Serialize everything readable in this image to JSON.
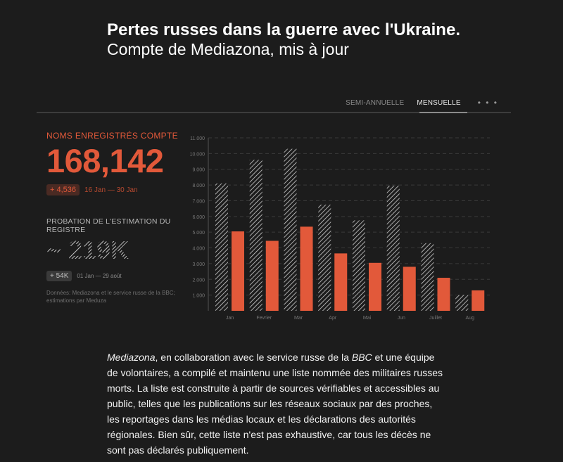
{
  "header": {
    "title": "Pertes russes dans la guerre avec l'Ukraine.",
    "subtitle": "Compte de Mediazona, mis à jour"
  },
  "tabs": [
    {
      "label": "SEMI-ANNUELLE",
      "active": false
    },
    {
      "label": "MENSUELLE",
      "active": true
    }
  ],
  "more_label": "• • •",
  "kpi_recorded": {
    "label": "NOMS ENREGISTRÉS COMPTE",
    "value": "168,142",
    "delta": "+ 4,536",
    "range": "16 Jan — 30 Jan"
  },
  "kpi_estimate": {
    "label": "PROBATION DE L'ESTIMATION DU REGISTRE",
    "value": "~ 219K",
    "delta": "+ 54K",
    "range": "01 Jan — 29 août"
  },
  "source_note": "Données: Mediazona et le service russe de la BBC; estimations par Meduza",
  "body": {
    "p1_em": "Mediazona",
    "p2": ", en collaboration avec le service russe de la ",
    "p3_em": "BBC",
    "p4": " et une équipe de volontaires, a compilé et maintenu une liste nommée des militaires russes morts. La liste est construite à partir de sources vérifiables et accessibles au public, telles que les publications sur les réseaux sociaux par des proches, les reportages dans les médias locaux et les déclarations des autorités régionales. Bien sûr, cette liste n'est pas exhaustive, car tous les décès ne sont pas déclarés publiquement."
  },
  "colors": {
    "accent": "#e2593a",
    "background": "#1c1c1c",
    "hatch": "#d0d0d0"
  },
  "chart_data": {
    "type": "bar",
    "categories": [
      "Jan",
      "Fevrier",
      "Mar",
      "Apr",
      "Mai",
      "Jun",
      "Juillet",
      "Aug"
    ],
    "series": [
      {
        "name": "",
        "style": "hatched",
        "values": [
          8100,
          9600,
          10300,
          6750,
          5750,
          7950,
          4300,
          1000
        ]
      },
      {
        "name": "",
        "style": "solid",
        "values": [
          5050,
          4450,
          5350,
          3650,
          3050,
          2800,
          2100,
          1300
        ]
      }
    ],
    "yticks": [
      1000,
      2000,
      3000,
      4000,
      5000,
      6000,
      7000,
      8000,
      9000,
      10000,
      11000
    ],
    "ytick_labels": [
      "1.000",
      "2.000",
      "3.000",
      "4.000",
      "5.000",
      "6.000",
      "7.000",
      "8.000",
      "9.000",
      "10.000",
      "11.000"
    ],
    "ylim": [
      0,
      11000
    ],
    "grid": true,
    "legend": "none"
  }
}
